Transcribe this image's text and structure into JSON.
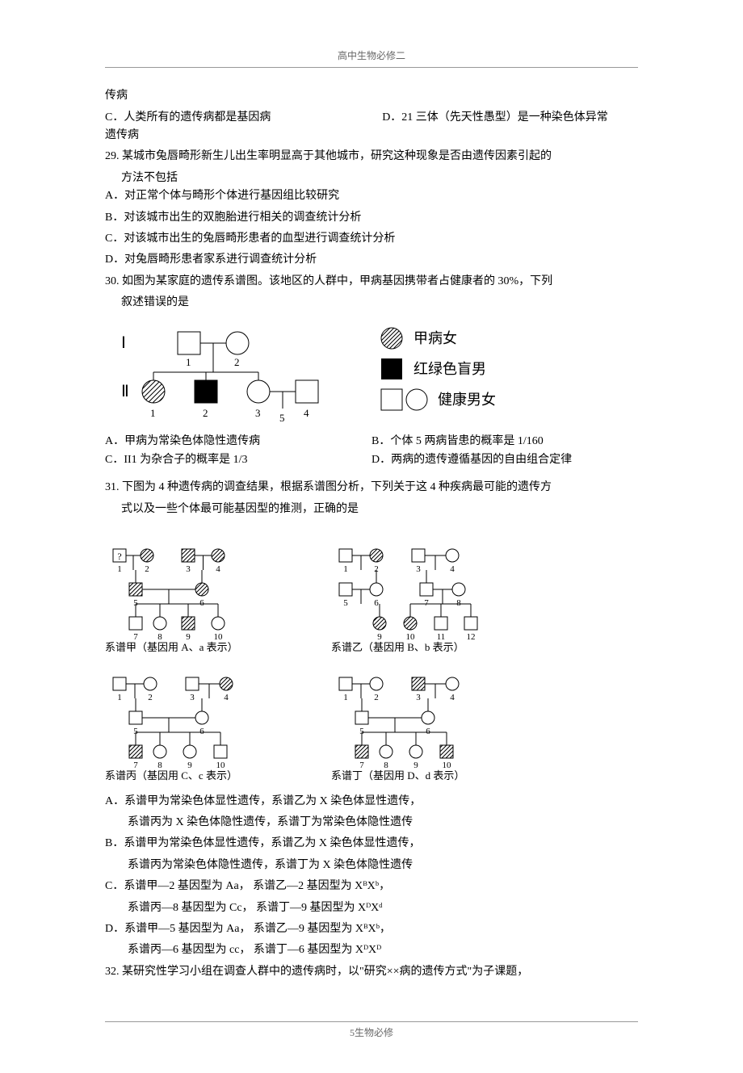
{
  "header": "高中生物必修二",
  "footer": "5生物必修",
  "frag": {
    "line1": "传病",
    "optC": "C．人类所有的遗传病都是基因病",
    "optD": "D．21 三体（先天性愚型）是一种染色体异常",
    "line3": "遗传病"
  },
  "q29": {
    "stem1": "29. 某城市兔唇畸形新生儿出生率明显高于其他城市，研究这种现象是否由遗传因素引起的",
    "stem2": "方法不包括",
    "A": "A．对正常个体与畸形个体进行基因组比较研究",
    "B": "B．对该城市出生的双胞胎进行相关的调查统计分析",
    "C": "C．对该城市出生的兔唇畸形患者的血型进行调查统计分析",
    "D": "D．对兔唇畸形患者家系进行调查统计分析"
  },
  "q30": {
    "stem1": "30. 如图为某家庭的遗传系谱图。该地区的人群中，甲病基因携带者占健康者的 30%，下列",
    "stem2": "叙述错误的是",
    "pedigree": {
      "gen1_label": "Ⅰ",
      "gen2_label": "Ⅱ",
      "person1": "1",
      "person2": "2",
      "person3": "3",
      "person4": "4",
      "person5": "5",
      "stroke": "#000000",
      "fill_hatched": "hatch",
      "fill_solid": "#000000",
      "fill_open": "#ffffff",
      "size": 28
    },
    "legend": {
      "l1": "甲病女",
      "l2": "红绿色盲男",
      "l3": "健康男女"
    },
    "A": "A．甲病为常染色体隐性遗传病",
    "B": "B．个体 5 两病皆患的概率是 1/160",
    "C": "C．II1 为杂合子的概率是 1/3",
    "D": "D．两病的遗传遵循基因的自由组合定律"
  },
  "q31": {
    "stem1": "31. 下图为 4 种遗传病的调查结果，根据系谱图分析，下列关于这 4 种疾病最可能的遗传方",
    "stem2": "式以及一些个体最可能基因型的推测，正确的是",
    "cap1": "系谱甲（基因用 A、a 表示）",
    "cap2": "系谱乙（基因用 B、b 表示）",
    "cap3": "系谱丙（基因用 C、c 表示）",
    "cap4": "系谱丁（基因用 D、d 表示）",
    "A1": "A．系谱甲为常染色体显性遗传，系谱乙为 X 染色体显性遗传，",
    "A2": "系谱丙为 X 染色体隐性遗传，系谱丁为常染色体隐性遗传",
    "B1": "B．系谱甲为常染色体显性遗传，系谱乙为 X 染色体显性遗传，",
    "B2": "系谱丙为常染色体隐性遗传，系谱丁为 X 染色体隐性遗传",
    "C1": "C．系谱甲—2 基因型为 Aa，  系谱乙—2 基因型为 XᴮXᵇ，",
    "C2": "系谱丙—8 基因型为 Cc，  系谱丁—9 基因型为 XᴰXᵈ",
    "D1": "D．系谱甲—5 基因型为 Aa，  系谱乙—9 基因型为 XᴮXᵇ，",
    "D2": "系谱丙—6 基因型为 cc，  系谱丁—6 基因型为 XᴰXᴰ",
    "pconf": {
      "stroke": "#000000",
      "sq": 18,
      "circ_r": 9
    }
  },
  "q32": {
    "stem": "32. 某研究性学习小组在调查人群中的遗传病时，以\"研究××病的遗传方式\"为子课题，"
  }
}
